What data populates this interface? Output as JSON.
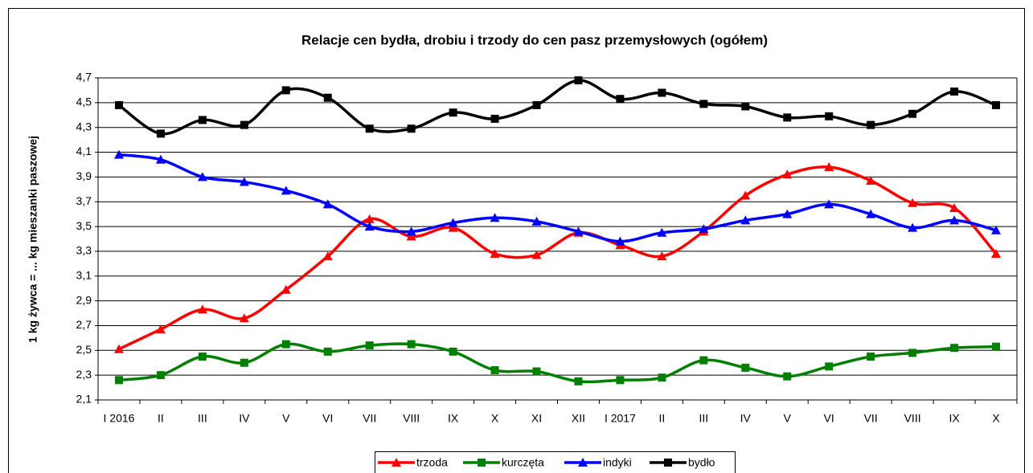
{
  "chart_data": {
    "type": "line",
    "title": "Relacje cen bydła, drobiu i trzody do cen pasz przemysłowych (ogółem)",
    "y_label": "1 kg żywca = ... kg mieszanki paszowej",
    "categories": [
      "I 2016",
      "II",
      "III",
      "IV",
      "V",
      "VI",
      "VII",
      "VIII",
      "IX",
      "X",
      "XI",
      "XII",
      "I 2017",
      "II",
      "III",
      "IV",
      "V",
      "VI",
      "VII",
      "VIII",
      "IX",
      "X"
    ],
    "series": [
      {
        "name": "trzoda",
        "color": "#ff0000",
        "marker": "triangle",
        "values": [
          2.51,
          2.67,
          2.83,
          2.76,
          2.99,
          3.26,
          3.56,
          3.42,
          3.49,
          3.28,
          3.27,
          3.45,
          3.35,
          3.26,
          3.46,
          3.75,
          3.92,
          3.98,
          3.87,
          3.69,
          3.65,
          3.28
        ]
      },
      {
        "name": "kurczęta",
        "color": "#008000",
        "marker": "square",
        "values": [
          2.26,
          2.3,
          2.45,
          2.4,
          2.55,
          2.49,
          2.54,
          2.55,
          2.49,
          2.34,
          2.33,
          2.25,
          2.26,
          2.28,
          2.42,
          2.36,
          2.29,
          2.37,
          2.45,
          2.48,
          2.52,
          2.53
        ]
      },
      {
        "name": "indyki",
        "color": "#0000ff",
        "marker": "triangle",
        "values": [
          4.08,
          4.04,
          3.9,
          3.86,
          3.79,
          3.68,
          3.5,
          3.46,
          3.53,
          3.57,
          3.54,
          3.46,
          3.38,
          3.45,
          3.48,
          3.55,
          3.6,
          3.68,
          3.6,
          3.49,
          3.55,
          3.47
        ]
      },
      {
        "name": "bydło",
        "color": "#000000",
        "marker": "square",
        "values": [
          4.48,
          4.25,
          4.36,
          4.32,
          4.6,
          4.54,
          4.29,
          4.29,
          4.42,
          4.37,
          4.48,
          4.68,
          4.53,
          4.58,
          4.49,
          4.47,
          4.38,
          4.39,
          4.32,
          4.41,
          4.59,
          4.48
        ]
      }
    ],
    "ylim": [
      2.1,
      4.7
    ],
    "yticks": [
      {
        "value": 2.1,
        "label": "2,1"
      },
      {
        "value": 2.3,
        "label": "2,3"
      },
      {
        "value": 2.5,
        "label": "2,5"
      },
      {
        "value": 2.7,
        "label": "2,7"
      },
      {
        "value": 2.9,
        "label": "2,9"
      },
      {
        "value": 3.1,
        "label": "3,1"
      },
      {
        "value": 3.3,
        "label": "3,3"
      },
      {
        "value": 3.5,
        "label": "3,5"
      },
      {
        "value": 3.7,
        "label": "3,7"
      },
      {
        "value": 3.9,
        "label": "3,9"
      },
      {
        "value": 4.1,
        "label": "4,1"
      },
      {
        "value": 4.3,
        "label": "4,3"
      },
      {
        "value": 4.5,
        "label": "4,5"
      },
      {
        "value": 4.7,
        "label": "4,7"
      }
    ],
    "grid": true,
    "smooth": true,
    "legend": "bottom"
  }
}
